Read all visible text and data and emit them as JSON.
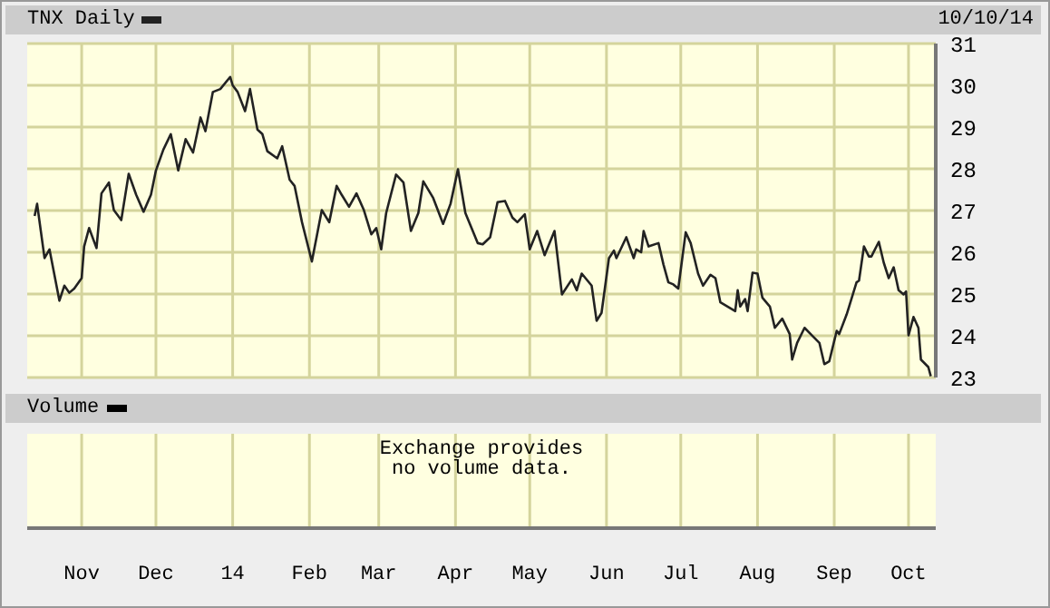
{
  "chart_data": {
    "type": "line",
    "annotations": [
      "10/10/14",
      "Volume",
      "Exchange provides no volume data."
    ],
    "x": [
      "2013-10-13",
      "2013-10-14",
      "2013-10-17",
      "2013-10-19",
      "2013-10-23",
      "2013-10-25",
      "2013-10-27",
      "2013-10-29",
      "2013-11-01",
      "2013-11-02",
      "2013-11-04",
      "2013-11-07",
      "2013-11-09",
      "2013-11-12",
      "2013-11-14",
      "2013-11-17",
      "2013-11-20",
      "2013-11-23",
      "2013-11-26",
      "2013-11-29",
      "2013-12-01",
      "2013-12-04",
      "2013-12-07",
      "2013-12-10",
      "2013-12-13",
      "2013-12-16",
      "2013-12-19",
      "2013-12-21",
      "2013-12-24",
      "2013-12-27",
      "2013-12-31",
      "2014-01-01",
      "2014-01-03",
      "2014-01-06",
      "2014-01-08",
      "2014-01-11",
      "2014-01-13",
      "2014-01-15",
      "2014-01-19",
      "2014-01-21",
      "2014-01-24",
      "2014-01-26",
      "2014-01-29",
      "2014-02-02",
      "2014-02-06",
      "2014-02-09",
      "2014-02-12",
      "2014-02-14",
      "2014-02-17",
      "2014-02-20",
      "2014-02-23",
      "2014-02-26",
      "2014-02-28",
      "2014-03-02",
      "2014-03-04",
      "2014-03-08",
      "2014-03-11",
      "2014-03-14",
      "2014-03-17",
      "2014-03-19",
      "2014-03-23",
      "2014-03-27",
      "2014-03-30",
      "2014-04-02",
      "2014-04-05",
      "2014-04-10",
      "2014-04-12",
      "2014-04-15",
      "2014-04-18",
      "2014-04-21",
      "2014-04-24",
      "2014-04-26",
      "2014-04-29",
      "2014-05-01",
      "2014-05-04",
      "2014-05-07",
      "2014-05-11",
      "2014-05-14",
      "2014-05-18",
      "2014-05-20",
      "2014-05-22",
      "2014-05-26",
      "2014-05-28",
      "2014-05-30",
      "2014-06-02",
      "2014-06-04",
      "2014-06-05",
      "2014-06-09",
      "2014-06-12",
      "2014-06-13",
      "2014-06-15",
      "2014-06-16",
      "2014-06-18",
      "2014-06-22",
      "2014-06-24",
      "2014-06-26",
      "2014-06-28",
      "2014-06-30",
      "2014-07-03",
      "2014-07-05",
      "2014-07-08",
      "2014-07-10",
      "2014-07-13",
      "2014-07-15",
      "2014-07-17",
      "2014-07-23",
      "2014-07-24",
      "2014-07-25",
      "2014-07-27",
      "2014-07-28",
      "2014-07-30",
      "2014-08-01",
      "2014-08-03",
      "2014-08-06",
      "2014-08-08",
      "2014-08-11",
      "2014-08-14",
      "2014-08-15",
      "2014-08-17",
      "2014-08-20",
      "2014-08-23",
      "2014-08-26",
      "2014-08-28",
      "2014-08-30",
      "2014-09-02",
      "2014-09-03",
      "2014-09-06",
      "2014-09-07",
      "2014-09-10",
      "2014-09-11",
      "2014-09-13",
      "2014-09-15",
      "2014-09-16",
      "2014-09-19",
      "2014-09-21",
      "2014-09-23",
      "2014-09-25",
      "2014-09-27",
      "2014-09-29",
      "2014-09-30",
      "2014-10-01",
      "2014-10-03",
      "2014-10-05",
      "2014-10-06",
      "2014-10-09",
      "2014-10-10"
    ],
    "series": [
      {
        "name": "TNX Daily",
        "color": "#222222",
        "axis": "y2",
        "values": [
          26.87,
          27.16,
          25.86,
          26.07,
          24.84,
          25.2,
          25.03,
          25.13,
          25.38,
          26.14,
          26.58,
          26.1,
          27.41,
          27.67,
          27.01,
          26.77,
          27.88,
          27.38,
          26.97,
          27.38,
          27.96,
          28.46,
          28.83,
          27.96,
          28.71,
          28.39,
          29.23,
          28.9,
          29.84,
          29.91,
          30.2,
          30.0,
          29.84,
          29.38,
          29.91,
          28.94,
          28.83,
          28.42,
          28.25,
          28.54,
          27.74,
          27.59,
          26.72,
          25.78,
          27.01,
          26.72,
          27.59,
          27.38,
          27.09,
          27.41,
          27.01,
          26.43,
          26.58,
          26.07,
          26.94,
          27.86,
          27.67,
          26.51,
          26.94,
          27.7,
          27.3,
          26.68,
          27.16,
          27.99,
          26.94,
          26.22,
          26.19,
          26.36,
          27.2,
          27.23,
          26.83,
          26.72,
          26.91,
          26.07,
          26.51,
          25.93,
          26.51,
          24.99,
          25.35,
          25.09,
          25.49,
          25.2,
          24.36,
          24.55,
          25.86,
          26.04,
          25.86,
          26.36,
          25.86,
          26.07,
          26.0,
          26.51,
          26.14,
          26.22,
          25.71,
          25.28,
          25.23,
          25.13,
          26.48,
          26.22,
          25.49,
          25.2,
          25.46,
          25.38,
          24.8,
          24.59,
          25.09,
          24.7,
          24.88,
          24.59,
          25.51,
          25.49,
          24.91,
          24.7,
          24.19,
          24.41,
          24.04,
          23.43,
          23.83,
          24.19,
          24.01,
          23.83,
          23.32,
          23.39,
          24.12,
          24.04,
          24.51,
          24.7,
          25.28,
          25.32,
          26.14,
          25.9,
          25.9,
          26.25,
          25.75,
          25.38,
          25.64,
          25.09,
          24.99,
          25.06,
          24.01,
          24.45,
          24.19,
          23.43,
          23.25,
          23.03
        ]
      }
    ],
    "xlim": [
      "2013-10-10",
      "2014-10-12"
    ],
    "xticks": [
      {
        "value": "2013-11-01",
        "label": "Nov"
      },
      {
        "value": "2013-12-01",
        "label": "Dec"
      },
      {
        "value": "2014-01-01",
        "label": "14"
      },
      {
        "value": "2014-02-01",
        "label": "Feb"
      },
      {
        "value": "2014-03-01",
        "label": "Mar"
      },
      {
        "value": "2014-04-01",
        "label": "Apr"
      },
      {
        "value": "2014-05-01",
        "label": "May"
      },
      {
        "value": "2014-06-01",
        "label": "Jun"
      },
      {
        "value": "2014-07-01",
        "label": "Jul"
      },
      {
        "value": "2014-08-01",
        "label": "Aug"
      },
      {
        "value": "2014-09-01",
        "label": "Sep"
      },
      {
        "value": "2014-10-01",
        "label": "Oct"
      }
    ],
    "y2lim": [
      23,
      31
    ],
    "y2ticks": [
      23,
      24,
      25,
      26,
      27,
      28,
      29,
      30,
      31
    ],
    "grid": true,
    "legend": "top left",
    "marker": "none"
  }
}
